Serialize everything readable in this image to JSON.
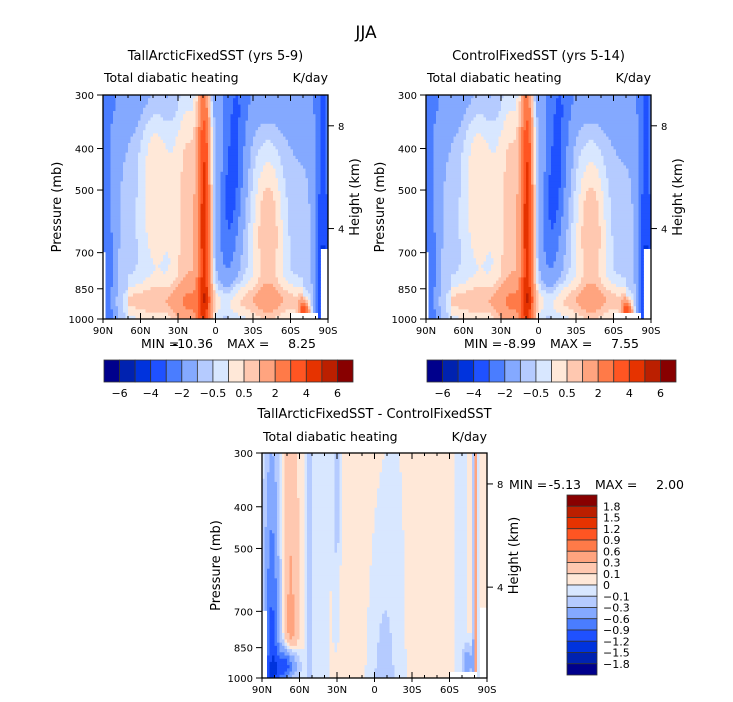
{
  "figure_title": "JJA",
  "chart_data": [
    {
      "type": "heatmap",
      "id": "tallarctic",
      "title": "TallArcticFixedSST (yrs 5-9)",
      "subtitle_left": "Total diabatic heating",
      "subtitle_right": "K/day",
      "xlabel": "",
      "ylabel": "Pressure (mb)",
      "ylabel_right": "Height (km)",
      "x_ticks": [
        "90N",
        "60N",
        "30N",
        "0",
        "30S",
        "60S",
        "90S"
      ],
      "x_range": [
        90,
        -90
      ],
      "y_ticks": [
        300,
        400,
        500,
        700,
        850,
        1000
      ],
      "y_range": [
        300,
        1000
      ],
      "y_right_ticks": [
        8,
        4
      ],
      "min_label": "MIN =",
      "min_value": "-10.36",
      "max_label": "MAX =",
      "max_value": "8.25",
      "colorbar": {
        "orientation": "horizontal",
        "labels": [
          "-6",
          "-4",
          "-2",
          "-0.5",
          "0.5",
          "2",
          "4",
          "6"
        ],
        "levels": [
          -7,
          -6,
          -5,
          -4,
          -3,
          -2,
          -1,
          -0.5,
          0,
          0.5,
          1,
          2,
          3,
          4,
          5,
          6,
          7
        ]
      },
      "features": [
        {
          "desc": "tropical heating column",
          "lat": 10,
          "p_top": 320,
          "p_bot": 1000,
          "value": 3.5
        },
        {
          "desc": "SH subtropical cooling",
          "lat": -18,
          "p_top": 330,
          "p_bot": 870,
          "value": -2.5
        },
        {
          "desc": "NH broad weak heating",
          "lat": 45,
          "p_top": 380,
          "p_bot": 1000,
          "value": 0.8
        },
        {
          "desc": "SH midlat heating",
          "lat": -42,
          "p_top": 480,
          "p_bot": 1000,
          "value": 1.2
        },
        {
          "desc": "Antarctic low-level heating",
          "lat": -72,
          "p_top": 920,
          "p_bot": 1000,
          "value": 4
        },
        {
          "desc": "Antarctic cooling",
          "lat": -85,
          "p_top": 300,
          "p_bot": 990,
          "value": -3
        }
      ]
    },
    {
      "type": "heatmap",
      "id": "control",
      "title": "ControlFixedSST (yrs 5-14)",
      "subtitle_left": "Total diabatic heating",
      "subtitle_right": "K/day",
      "xlabel": "",
      "ylabel": "Pressure (mb)",
      "ylabel_right": "Height (km)",
      "x_ticks": [
        "90N",
        "60N",
        "30N",
        "0",
        "30S",
        "60S",
        "90S"
      ],
      "x_range": [
        90,
        -90
      ],
      "y_ticks": [
        300,
        400,
        500,
        700,
        850,
        1000
      ],
      "y_range": [
        300,
        1000
      ],
      "y_right_ticks": [
        8,
        4
      ],
      "min_label": "MIN =",
      "min_value": "-8.99",
      "max_label": "MAX =",
      "max_value": "7.55",
      "colorbar": {
        "orientation": "horizontal",
        "labels": [
          "-6",
          "-4",
          "-2",
          "-0.5",
          "0.5",
          "2",
          "4",
          "6"
        ],
        "levels": [
          -7,
          -6,
          -5,
          -4,
          -3,
          -2,
          -1,
          -0.5,
          0,
          0.5,
          1,
          2,
          3,
          4,
          5,
          6,
          7
        ]
      },
      "features": [
        {
          "desc": "tropical heating column",
          "lat": 10,
          "p_top": 320,
          "p_bot": 1000,
          "value": 3.5
        },
        {
          "desc": "SH subtropical cooling",
          "lat": -18,
          "p_top": 330,
          "p_bot": 870,
          "value": -2.5
        },
        {
          "desc": "NH broad weak heating",
          "lat": 45,
          "p_top": 380,
          "p_bot": 1000,
          "value": 0.8
        },
        {
          "desc": "SH midlat heating",
          "lat": -42,
          "p_top": 480,
          "p_bot": 1000,
          "value": 1.2
        },
        {
          "desc": "Antarctic low-level heating",
          "lat": -72,
          "p_top": 920,
          "p_bot": 1000,
          "value": 4
        },
        {
          "desc": "Antarctic cooling",
          "lat": -85,
          "p_top": 300,
          "p_bot": 990,
          "value": -3
        }
      ]
    },
    {
      "type": "heatmap",
      "id": "difference",
      "title": "TallArcticFixedSST - ControlFixedSST",
      "subtitle_left": "Total diabatic heating",
      "subtitle_right": "K/day",
      "xlabel": "",
      "ylabel": "Pressure (mb)",
      "ylabel_right": "Height (km)",
      "x_ticks": [
        "90N",
        "60N",
        "30N",
        "0",
        "30S",
        "60S",
        "90S"
      ],
      "x_range": [
        90,
        -90
      ],
      "y_ticks": [
        300,
        400,
        500,
        700,
        850,
        1000
      ],
      "y_range": [
        300,
        1000
      ],
      "y_right_ticks": [
        8,
        4
      ],
      "min_label": "MIN =",
      "min_value": "-5.13",
      "max_label": "MAX =",
      "max_value": "2.00",
      "colorbar": {
        "orientation": "vertical",
        "labels": [
          "1.8",
          "1.5",
          "1.2",
          "0.9",
          "0.6",
          "0.3",
          "0.1",
          "0",
          "-0.1",
          "-0.3",
          "-0.6",
          "-0.9",
          "-1.2",
          "-1.5",
          "-1.8"
        ]
      },
      "features": [
        {
          "desc": "Arctic low-level cooling",
          "lat": 75,
          "p_top": 550,
          "p_bot": 1000,
          "value": -0.9
        },
        {
          "desc": "NH high-lat warming",
          "lat": 68,
          "p_top": 320,
          "p_bot": 950,
          "value": 0.3
        },
        {
          "desc": "broad near-zero positive",
          "lat": -20,
          "p_top": 300,
          "p_bot": 900,
          "value": 0.05
        },
        {
          "desc": "tropical weak negative",
          "lat": 20,
          "p_top": 300,
          "p_bot": 1000,
          "value": -0.05
        }
      ]
    }
  ],
  "colors": {
    "scale16": [
      "#00008c",
      "#0022b0",
      "#0033dd",
      "#1f51ff",
      "#4a7dff",
      "#84a9ff",
      "#b5cbff",
      "#d8e7ff",
      "#ffe8d8",
      "#ffc8b0",
      "#ffa47f",
      "#ff7a48",
      "#ff5522",
      "#e63300",
      "#bb1f00",
      "#880000"
    ],
    "axis": "#000000",
    "background": "#ffffff"
  }
}
